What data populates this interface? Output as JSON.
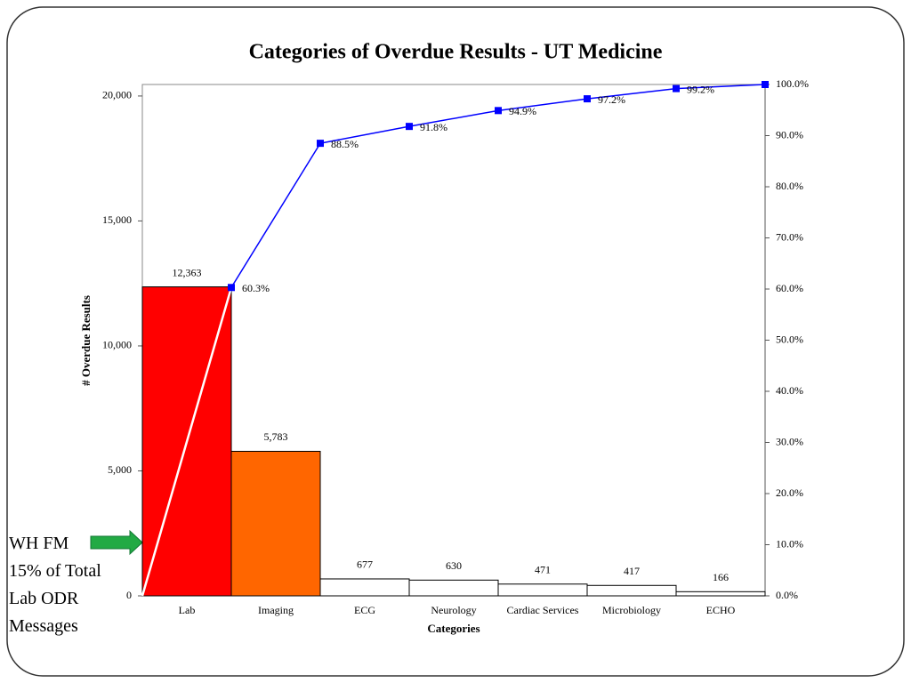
{
  "chart_data": {
    "type": "pareto",
    "title": "Categories of Overdue Results - UT Medicine",
    "x_label": "Categories",
    "y_label": "# Overdue Results",
    "categories": [
      "Lab",
      "Imaging",
      "ECG",
      "Neurology",
      "Cardiac Services",
      "Microbiology",
      "ECHO"
    ],
    "values": [
      12363,
      5783,
      677,
      630,
      471,
      417,
      166
    ],
    "value_labels": [
      "12,363",
      "5,783",
      "677",
      "630",
      "471",
      "417",
      "166"
    ],
    "colors": [
      "#ff0000",
      "#ff6600",
      "#ffffff",
      "#ffffff",
      "#ffffff",
      "#ffffff",
      "#ffffff"
    ],
    "cumulative": {
      "values": [
        60.3,
        88.5,
        91.8,
        94.9,
        97.2,
        99.2,
        100
      ],
      "value_labels": [
        "60.3%",
        "88.5%",
        "91.8%",
        "94.9%",
        "97.2%",
        "99.2%",
        null
      ],
      "color": "#0000ff",
      "axis": "y2"
    },
    "ylim": [
      0,
      20460
    ],
    "yticks": [
      0,
      {
        "value": 5000,
        "label": "5,000"
      },
      {
        "value": 10000,
        "label": "10,000"
      },
      {
        "value": 15000,
        "label": "15,000"
      },
      {
        "value": 20000,
        "label": "20,000"
      }
    ],
    "y2lim": [
      0,
      100
    ],
    "y2ticks": [
      {
        "value": 0,
        "label": "0.0%"
      },
      {
        "value": 10,
        "label": "10.0%"
      },
      {
        "value": 20,
        "label": "20.0%"
      },
      {
        "value": 30,
        "label": "30.0%"
      },
      {
        "value": 40,
        "label": "40.0%"
      },
      {
        "value": 50,
        "label": "50.0%"
      },
      {
        "value": 60,
        "label": "60.0%"
      },
      {
        "value": 70,
        "label": "70.0%"
      },
      {
        "value": 80,
        "label": "80.0%"
      },
      {
        "value": 90,
        "label": "90.0%"
      },
      {
        "value": 100,
        "label": "100.0%"
      }
    ],
    "annotation": {
      "lines": [
        "WH FM",
        "15% of Total",
        "Lab ODR",
        "Messages"
      ]
    }
  }
}
